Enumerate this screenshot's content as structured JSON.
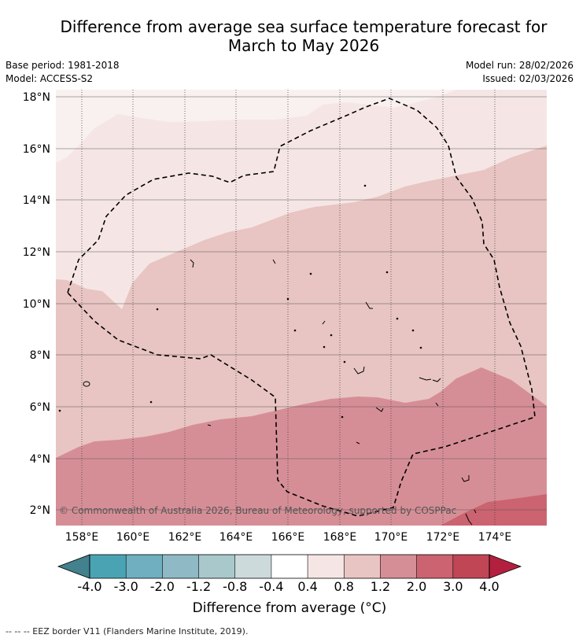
{
  "title_line1": "Difference from average sea surface temperature forecast for",
  "title_line2": "March to May 2026",
  "base_period": "Base period: 1981-2018",
  "model": "Model: ACCESS-S2",
  "model_run": "Model run: 28/02/2026",
  "issued": "Issued: 02/03/2026",
  "copyright": "© Commonwealth of Australia 2026, Bureau of Meteorology, supported by COSPPac",
  "lon_labels": [
    "158°E",
    "160°E",
    "162°E",
    "164°E",
    "166°E",
    "168°E",
    "170°E",
    "172°E",
    "174°E"
  ],
  "lat_labels": [
    "18°N",
    "16°N",
    "14°N",
    "12°N",
    "10°N",
    "8°N",
    "6°N",
    "4°N",
    "2°N"
  ],
  "colorbar": {
    "ticks": [
      "-4.0",
      "-3.0",
      "-2.0",
      "-1.2",
      "-0.8",
      "-0.4",
      "0.4",
      "0.8",
      "1.2",
      "2.0",
      "3.0",
      "4.0"
    ],
    "colors": [
      "#4aa3b3",
      "#6fafbf",
      "#8fbac5",
      "#a8c8cc",
      "#cddadc",
      "#ffffff",
      "#f5e6e5",
      "#e8c5c2",
      "#d68e96",
      "#cb6470",
      "#c04655"
    ],
    "under_color": "#42818d",
    "over_color": "#b3203f",
    "label": "Difference from average (°C)"
  },
  "legend_note": "-- -- -- EEZ border V11 (Flanders Marine Institute, 2019)."
}
